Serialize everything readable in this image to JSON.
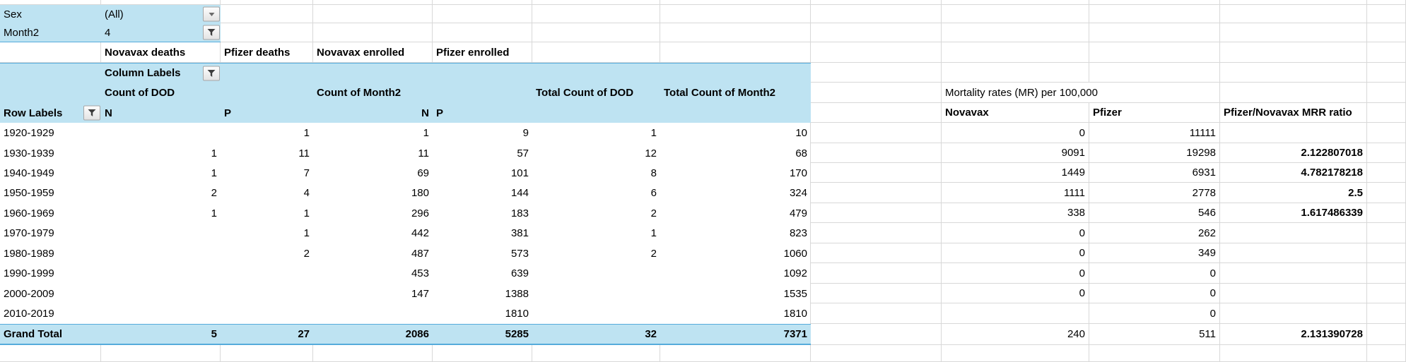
{
  "filters": {
    "sex": {
      "label": "Sex",
      "value": "(All)",
      "icon": "caret-down-icon"
    },
    "month2": {
      "label": "Month2",
      "value": "4",
      "icon": "funnel-icon"
    }
  },
  "group_headers": {
    "novavax_deaths": "Novavax deaths",
    "pfizer_deaths": "Pfizer deaths",
    "novavax_enrolled": "Novavax enrolled",
    "pfizer_enrolled": "Pfizer enrolled"
  },
  "pivot": {
    "column_labels": "Column Labels",
    "count_of_dod": "Count of DOD",
    "count_of_month2": "Count of Month2",
    "total_count_of_dod": "Total Count of DOD",
    "total_count_of_month2": "Total Count of Month2",
    "row_labels": "Row Labels",
    "col_n1": "N",
    "col_p1": "P",
    "col_n2": "N",
    "col_p2": "P",
    "rows": [
      {
        "label": "1920-1929",
        "dod_n": "",
        "dod_p": "1",
        "m2_n": "1",
        "m2_p": "9",
        "total_dod": "1",
        "total_m2": "10",
        "mr_novavax": "0",
        "mr_pfizer": "11111",
        "mrr": ""
      },
      {
        "label": "1930-1939",
        "dod_n": "1",
        "dod_p": "11",
        "m2_n": "11",
        "m2_p": "57",
        "total_dod": "12",
        "total_m2": "68",
        "mr_novavax": "9091",
        "mr_pfizer": "19298",
        "mrr": "2.122807018"
      },
      {
        "label": "1940-1949",
        "dod_n": "1",
        "dod_p": "7",
        "m2_n": "69",
        "m2_p": "101",
        "total_dod": "8",
        "total_m2": "170",
        "mr_novavax": "1449",
        "mr_pfizer": "6931",
        "mrr": "4.782178218"
      },
      {
        "label": "1950-1959",
        "dod_n": "2",
        "dod_p": "4",
        "m2_n": "180",
        "m2_p": "144",
        "total_dod": "6",
        "total_m2": "324",
        "mr_novavax": "1111",
        "mr_pfizer": "2778",
        "mrr": "2.5"
      },
      {
        "label": "1960-1969",
        "dod_n": "1",
        "dod_p": "1",
        "m2_n": "296",
        "m2_p": "183",
        "total_dod": "2",
        "total_m2": "479",
        "mr_novavax": "338",
        "mr_pfizer": "546",
        "mrr": "1.617486339"
      },
      {
        "label": "1970-1979",
        "dod_n": "",
        "dod_p": "1",
        "m2_n": "442",
        "m2_p": "381",
        "total_dod": "1",
        "total_m2": "823",
        "mr_novavax": "0",
        "mr_pfizer": "262",
        "mrr": ""
      },
      {
        "label": "1980-1989",
        "dod_n": "",
        "dod_p": "2",
        "m2_n": "487",
        "m2_p": "573",
        "total_dod": "2",
        "total_m2": "1060",
        "mr_novavax": "0",
        "mr_pfizer": "349",
        "mrr": ""
      },
      {
        "label": "1990-1999",
        "dod_n": "",
        "dod_p": "",
        "m2_n": "453",
        "m2_p": "639",
        "total_dod": "",
        "total_m2": "1092",
        "mr_novavax": "0",
        "mr_pfizer": "0",
        "mrr": ""
      },
      {
        "label": "2000-2009",
        "dod_n": "",
        "dod_p": "",
        "m2_n": "147",
        "m2_p": "1388",
        "total_dod": "",
        "total_m2": "1535",
        "mr_novavax": "0",
        "mr_pfizer": "0",
        "mrr": ""
      },
      {
        "label": "2010-2019",
        "dod_n": "",
        "dod_p": "",
        "m2_n": "",
        "m2_p": "1810",
        "total_dod": "",
        "total_m2": "1810",
        "mr_novavax": "",
        "mr_pfizer": "0",
        "mrr": ""
      }
    ],
    "grand_total": {
      "label": "Grand Total",
      "dod_n": "5",
      "dod_p": "27",
      "m2_n": "2086",
      "m2_p": "5285",
      "total_dod": "32",
      "total_m2": "7371",
      "mr_novavax": "240",
      "mr_pfizer": "511",
      "mrr": "2.131390728"
    }
  },
  "mortality": {
    "title": "Mortality rates (MR) per 100,000",
    "novavax": "Novavax",
    "pfizer": "Pfizer",
    "ratio": "Pfizer/Novavax MRR ratio"
  },
  "colors": {
    "pivot_fill": "#BEE3F2",
    "pivot_border": "#55ABDB",
    "gridline": "#D8D8D8",
    "text": "#000000"
  }
}
